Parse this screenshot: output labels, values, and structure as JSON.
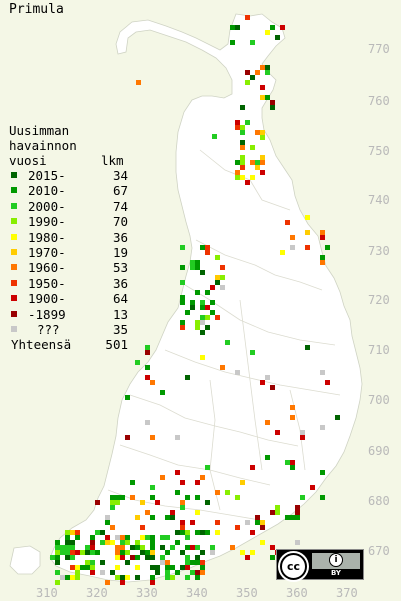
{
  "title": "Primula",
  "legend": {
    "header_lines": [
      "Uusimman",
      "havainnon",
      "vuosi"
    ],
    "count_header": "lkm",
    "rows": [
      {
        "label": "2015-",
        "count": "34",
        "color": "#006400"
      },
      {
        "label": "2010-",
        "count": "67",
        "color": "#009900"
      },
      {
        "label": "2000-",
        "count": "74",
        "color": "#22cc22"
      },
      {
        "label": "1990-",
        "count": "70",
        "color": "#88ee00"
      },
      {
        "label": "1980-",
        "count": "36",
        "color": "#ffff00"
      },
      {
        "label": "1970-",
        "count": "19",
        "color": "#ffcc00"
      },
      {
        "label": "1960-",
        "count": "53",
        "color": "#ff7700"
      },
      {
        "label": "1950-",
        "count": "36",
        "color": "#ee3300"
      },
      {
        "label": "1900-",
        "count": "64",
        "color": "#cc0000"
      },
      {
        "label": "-1899",
        "count": "13",
        "color": "#990000"
      },
      {
        "label": "???",
        "count": "35",
        "color": "#c8c8c8"
      }
    ],
    "total_label": "Yhteensä",
    "total_count": "501"
  },
  "axes": {
    "x_ticks": [
      "310",
      "320",
      "330",
      "340",
      "350",
      "360",
      "370"
    ],
    "y_ticks": [
      "770",
      "760",
      "750",
      "740",
      "730",
      "720",
      "710",
      "700",
      "690",
      "680",
      "670"
    ]
  },
  "license": {
    "cc": "cc",
    "by": "BY"
  }
}
